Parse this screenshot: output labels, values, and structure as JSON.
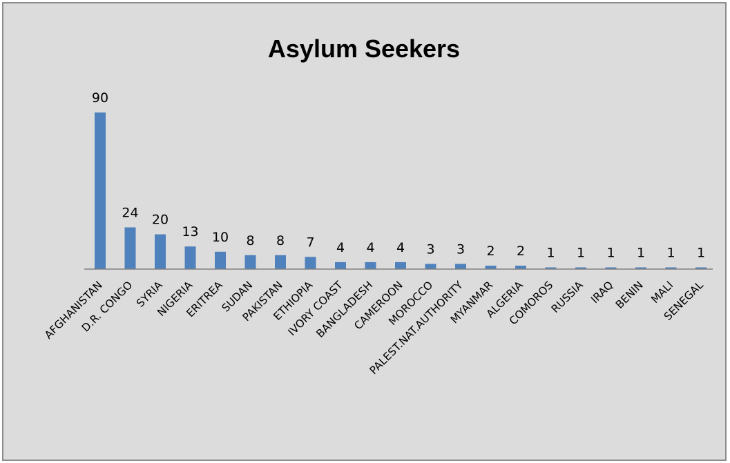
{
  "chart_data": {
    "type": "bar",
    "title": "Asylum Seekers",
    "xlabel": "",
    "ylabel": "",
    "categories": [
      "AFGHANISTAN",
      "D.R. CONGO",
      "SYRIA",
      "NIGERIA",
      "ERITREA",
      "SUDAN",
      "PAKISTAN",
      "ETHIOPIA",
      "IVORY COAST",
      "BANGLADESH",
      "CAMEROON",
      "MOROCCO",
      "PALEST.NAT.AUTHORITY",
      "MYANMAR",
      "ALGERIA",
      "COMOROS",
      "RUSSIA",
      "IRAQ",
      "BENIN",
      "MALI",
      "SENEGAL"
    ],
    "values": [
      90,
      24,
      20,
      13,
      10,
      8,
      8,
      7,
      4,
      4,
      4,
      3,
      3,
      2,
      2,
      1,
      1,
      1,
      1,
      1,
      1
    ],
    "ylim": [
      0,
      90
    ],
    "grid": false,
    "legend": false,
    "data_labels": true,
    "colors": {
      "bar": "#4f81bd",
      "background": "#dcdcdc",
      "border": "#8c8c8c",
      "axis": "#808080"
    }
  }
}
